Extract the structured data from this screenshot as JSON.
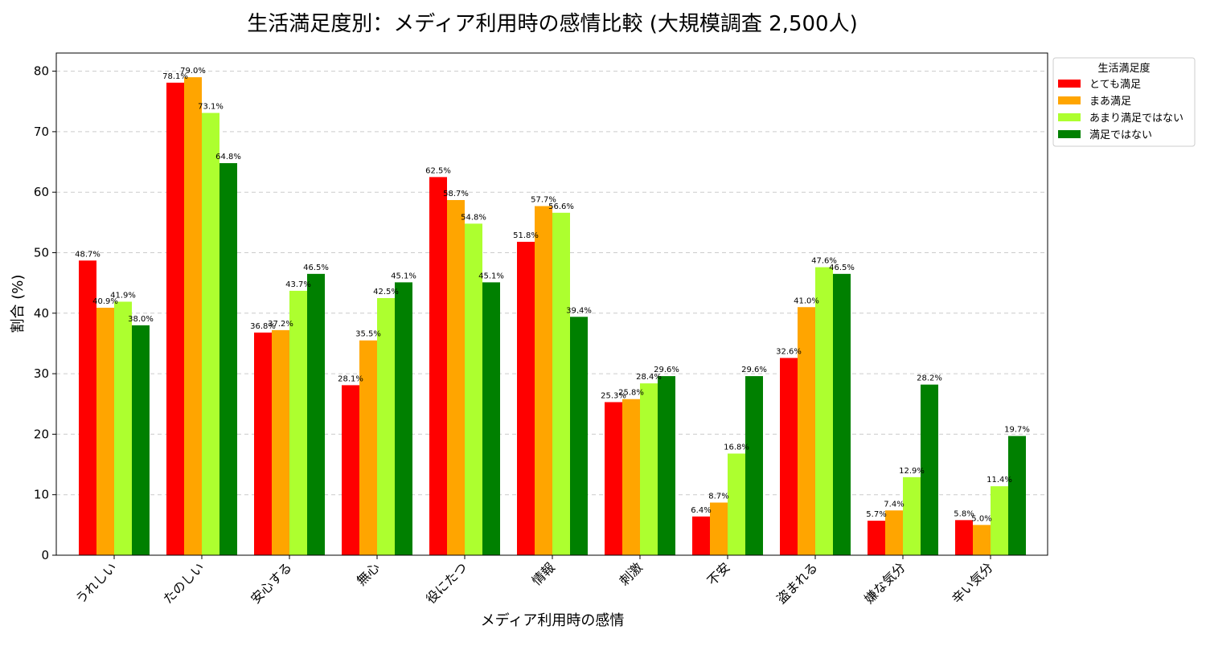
{
  "chart_data": {
    "type": "bar",
    "title": "生活満足度別：メディア利用時の感情比較 (大規模調査 2,500人)",
    "xlabel": "メディア利用時の感情",
    "ylabel": "割合 (%)",
    "ylim": [
      0,
      83
    ],
    "yticks": [
      0,
      10,
      20,
      30,
      40,
      50,
      60,
      70,
      80
    ],
    "grid": true,
    "legend_title": "生活満足度",
    "legend_position": "outside-top-right",
    "categories": [
      "うれしい",
      "たのしい",
      "安心する",
      "無心",
      "役にたつ",
      "情報",
      "刺激",
      "不安",
      "盗まれる",
      "嫌な気分",
      "辛い気分"
    ],
    "series": [
      {
        "name": "とても満足",
        "color": "#ff0000",
        "values": [
          48.7,
          78.1,
          36.8,
          28.1,
          62.5,
          51.8,
          25.3,
          6.4,
          32.6,
          5.7,
          5.8
        ]
      },
      {
        "name": "まあ満足",
        "color": "#ffa500",
        "values": [
          40.9,
          79.0,
          37.2,
          35.5,
          58.7,
          57.7,
          25.8,
          8.7,
          41.0,
          7.4,
          5.0
        ]
      },
      {
        "name": "あまり満足ではない",
        "color": "#adff2f",
        "values": [
          41.9,
          73.1,
          43.7,
          42.5,
          54.8,
          56.6,
          28.4,
          16.8,
          47.6,
          12.9,
          11.4
        ]
      },
      {
        "name": "満足ではない",
        "color": "#008000",
        "values": [
          38.0,
          64.8,
          46.5,
          45.1,
          45.1,
          39.4,
          29.6,
          29.6,
          46.5,
          28.2,
          19.7
        ]
      }
    ]
  }
}
